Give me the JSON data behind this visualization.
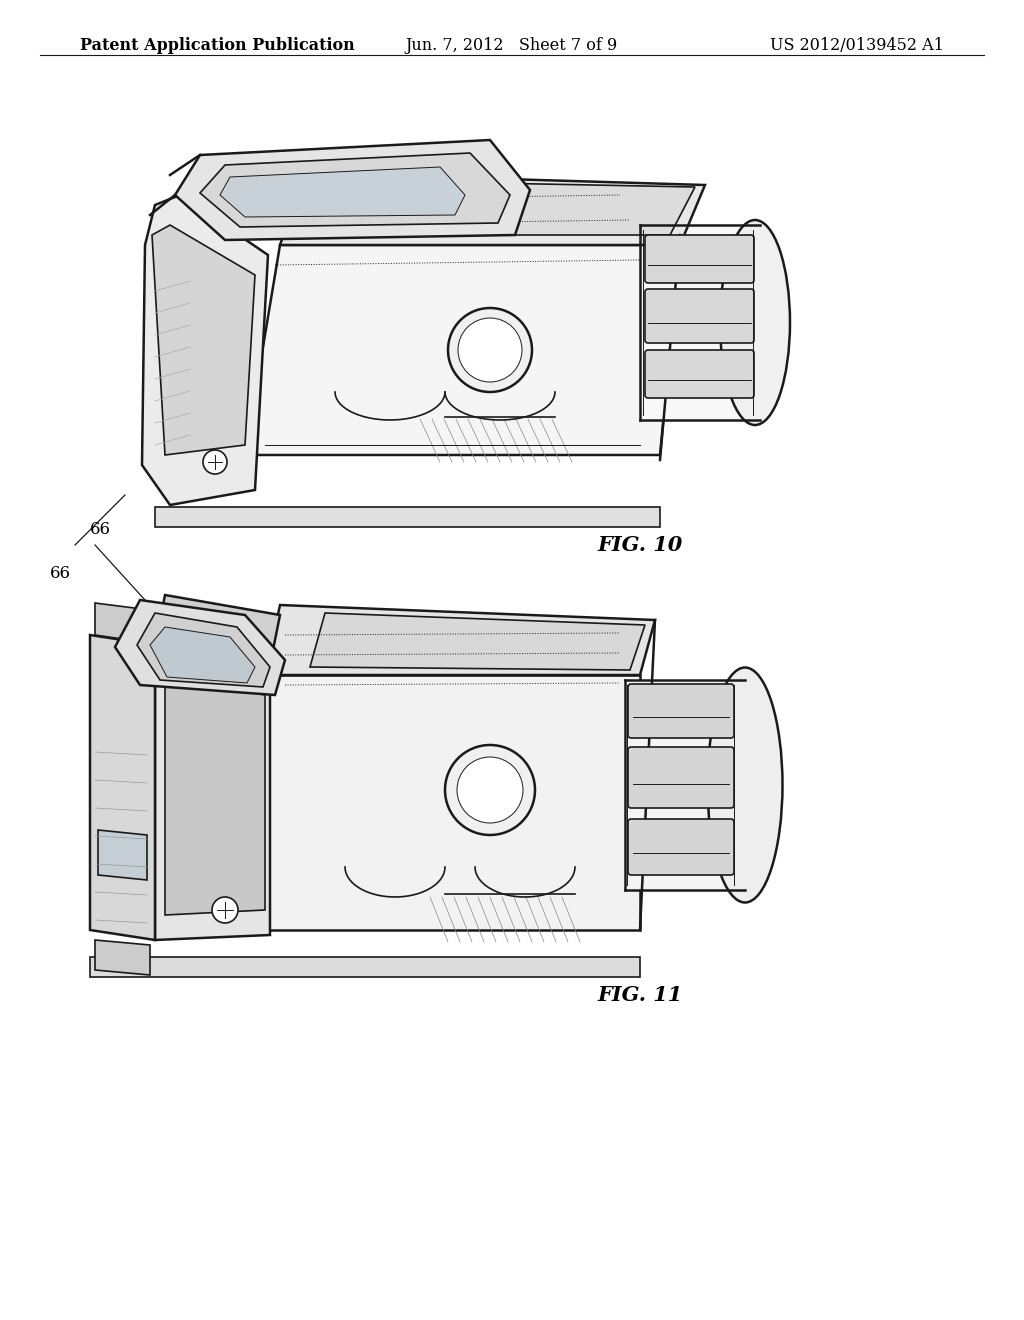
{
  "background_color": "#ffffff",
  "header_left": "Patent Application Publication",
  "header_center": "Jun. 7, 2012   Sheet 7 of 9",
  "header_right": "US 2012/0139452 A1",
  "header_fontsize": 11.5,
  "fig10_label": "FIG. 10",
  "fig11_label": "FIG. 11",
  "fig_label_fontsize": 15,
  "ref_fontsize": 12,
  "line_color": "#1a1a1a",
  "fill_light": "#f5f5f5",
  "fill_mid": "#e0e0e0",
  "fill_dark": "#c0c0c0",
  "fill_white": "#ffffff"
}
